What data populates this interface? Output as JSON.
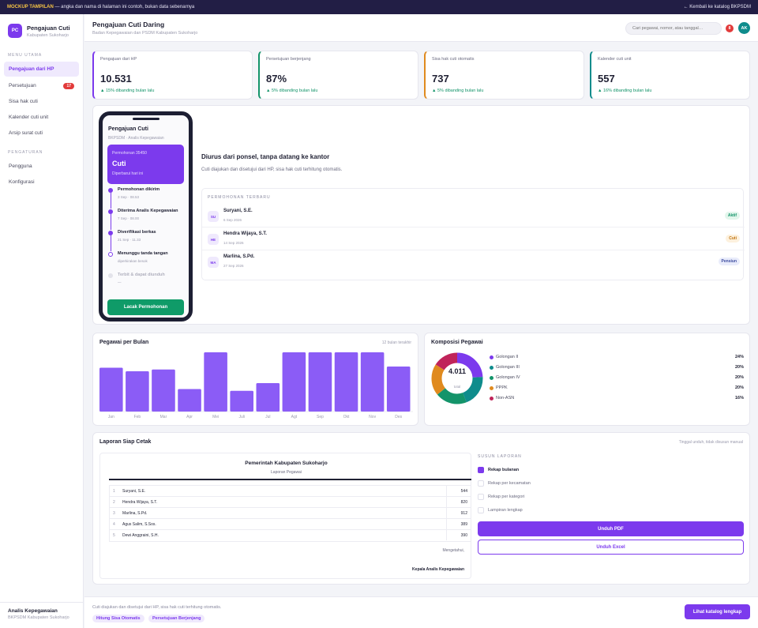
{
  "topbar": {
    "tag": "MOCKUP TAMPILAN",
    "note": " — angka dan nama di halaman ini contoh, bukan data sebenarnya",
    "back_link": "← Kembali ke katalog BKPSDM"
  },
  "brand": {
    "logo": "PC",
    "title": "Pengajuan Cuti",
    "subtitle": "Kabupaten Sukoharjo"
  },
  "sidebar": {
    "section_main": "MENU UTAMA",
    "items": [
      {
        "label": "Pengajuan dari HP",
        "active": true
      },
      {
        "label": "Persetujuan",
        "badge": "17"
      },
      {
        "label": "Sisa hak cuti"
      },
      {
        "label": "Kalender cuti unit"
      },
      {
        "label": "Arsip surat cuti"
      }
    ],
    "section_settings": "PENGATURAN",
    "settings_items": [
      {
        "label": "Pengguna"
      },
      {
        "label": "Konfigurasi"
      }
    ],
    "user_name": "Analis Kepegawaian",
    "user_role": "BKPSDM Kabupaten Sukoharjo"
  },
  "header": {
    "title": "Pengajuan Cuti Daring",
    "subtitle": "Badan Kepegawaian dan PSDM Kabupaten Sukoharjo",
    "search_placeholder": "Cari pegawai, nomor, atau tanggal…",
    "notif_count": "8",
    "avatar": "AK"
  },
  "stats": [
    {
      "label": "Pengajuan dari HP",
      "value": "10.531",
      "delta": "▲ 15% dibanding bulan lalu",
      "accent": "#7c3aed"
    },
    {
      "label": "Persetujuan berjenjang",
      "value": "87%",
      "delta": "▲ 5% dibanding bulan lalu",
      "accent": "#14946a"
    },
    {
      "label": "Sisa hak cuti otomatis",
      "value": "737",
      "delta": "▲ 5% dibanding bulan lalu",
      "accent": "#e08a1e"
    },
    {
      "label": "Kalender cuti unit",
      "value": "557",
      "delta": "▲ 16% dibanding bulan lalu",
      "accent": "#0f8c8c"
    }
  ],
  "phone": {
    "title": "Pengajuan Cuti",
    "subtitle": "BKPSDM · Analis Kepegawaian",
    "card_number": "Permohonan 35450",
    "card_title": "Cuti",
    "card_date": "Diperbarui hari ini",
    "steps": [
      {
        "title": "Permohonan dikirim",
        "meta": "3 Sep · 08.53",
        "state": "done"
      },
      {
        "title": "Diterima Analis Kepegawaian",
        "meta": "7 Sep · 08.00",
        "state": "done"
      },
      {
        "title": "Diverifikasi berkas",
        "meta": "21 Sep · 11.33",
        "state": "done"
      },
      {
        "title": "Menunggu tanda tangan",
        "meta": "diperkirakan besok",
        "state": "current"
      },
      {
        "title": "Terbit & dapat diunduh",
        "meta": "—",
        "state": "pending"
      }
    ],
    "button": "Lacak Permohonan"
  },
  "hero": {
    "heading": "Diurus dari ponsel, tanpa datang ke kantor",
    "text": "Cuti diajukan dan disetujui dari HP, sisa hak cuti terhitung otomatis."
  },
  "requests": {
    "label": "PERMOHONAN TERBARU",
    "rows": [
      {
        "initials": "SU",
        "name": "Suryani, S.E.",
        "date": "6 Sep 2026",
        "status": "Aktif",
        "status_bg": "#e3f6ec",
        "status_fg": "#14946a"
      },
      {
        "initials": "HE",
        "name": "Hendra Wijaya, S.T.",
        "date": "14 Sep 2026",
        "status": "Cuti",
        "status_bg": "#fdf1de",
        "status_fg": "#c0730e"
      },
      {
        "initials": "MA",
        "name": "Marlina, S.Pd.",
        "date": "27 Sep 2026",
        "status": "Pensiun",
        "status_bg": "#e9ecfb",
        "status_fg": "#3b4a9e"
      }
    ]
  },
  "bar_chart": {
    "title": "Pegawai per Bulan",
    "subtitle": "12 bulan terakhir",
    "chart_data": {
      "type": "bar",
      "categories": [
        "Jan",
        "Feb",
        "Mar",
        "Apr",
        "Mei",
        "Juli",
        "Jul",
        "Agt",
        "Sep",
        "Okt",
        "Nov",
        "Des"
      ],
      "values": [
        74,
        68,
        71,
        38,
        100,
        35,
        48,
        100,
        100,
        100,
        100,
        76
      ],
      "ylim": [
        0,
        100
      ],
      "color": "#8b5cf6"
    }
  },
  "pie_chart": {
    "title": "Komposisi Pegawai",
    "center_value": "4.011",
    "center_label": "total",
    "chart_data": {
      "type": "pie",
      "labels": [
        "Golongan II",
        "Golongan III",
        "Golongan IV",
        "PPPK",
        "Non-ASN"
      ],
      "values": [
        24,
        20,
        20,
        20,
        16
      ],
      "value_labels": [
        "24%",
        "20%",
        "20%",
        "20%",
        "16%"
      ],
      "colors": [
        "#7c3aed",
        "#0f8c8c",
        "#14946a",
        "#e08a1e",
        "#c0245a"
      ]
    }
  },
  "report": {
    "title": "Laporan Siap Cetak",
    "subtitle": "Tinggal unduh, tidak disusun manual",
    "doc_title": "Pemerintah Kabupaten Sukoharjo",
    "doc_subtitle": "Laporan Pegawai",
    "rows": [
      {
        "i": "1",
        "name": "Suryani, S.E.",
        "value": "544"
      },
      {
        "i": "2",
        "name": "Hendra Wijaya, S.T.",
        "value": "820"
      },
      {
        "i": "3",
        "name": "Marlina, S.Pd.",
        "value": "912"
      },
      {
        "i": "4",
        "name": "Agus Salim, S.Sos.",
        "value": "389"
      },
      {
        "i": "5",
        "name": "Dewi Anggraini, S.H.",
        "value": "390"
      }
    ],
    "known": "Mengetahui,",
    "signer": "Kepala Analis Kepegawaian",
    "options_label": "SUSUN LAPORAN",
    "options": [
      {
        "label": "Rekap bulanan",
        "on": true
      },
      {
        "label": "Rekap per kecamatan",
        "on": false
      },
      {
        "label": "Rekap per kategori",
        "on": false
      },
      {
        "label": "Lampiran lengkap",
        "on": false
      }
    ],
    "pdf_button": "Unduh PDF",
    "excel_button": "Unduh Excel"
  },
  "footer": {
    "text": "Cuti diajukan dan disetujui dari HP, sisa hak cuti terhitung otomatis.",
    "chip1": "Hitung Sisa Otomatis",
    "chip2": "Persetujuan Berjenjang",
    "button": "Lihat katalog lengkap"
  }
}
